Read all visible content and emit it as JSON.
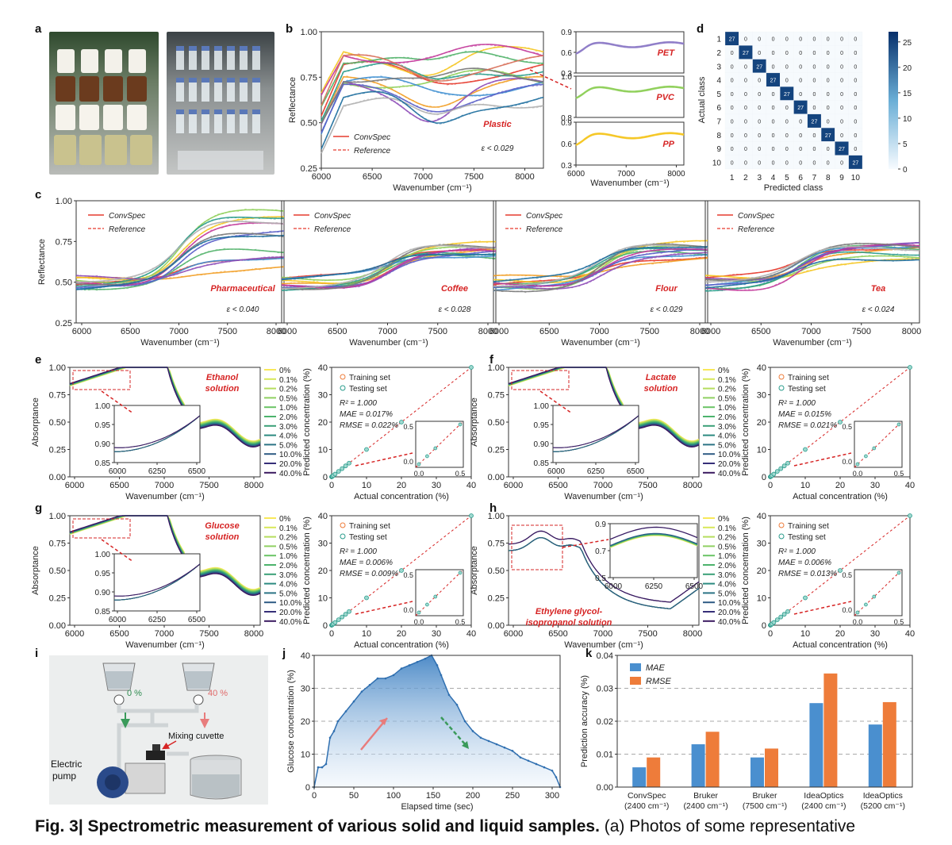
{
  "panel_labels": {
    "a": "a",
    "b": "b",
    "c": "c",
    "d": "d",
    "e": "e",
    "f": "f",
    "g": "g",
    "h": "h",
    "i": "i",
    "j": "j",
    "k": "k"
  },
  "legend": {
    "model": "ConvSpec",
    "reference": "Reference"
  },
  "axes": {
    "wavenumber": "Wavenumber (cm⁻¹)",
    "reflectance": "Reflectance",
    "absorptance": "Absorptance",
    "actual_conc": "Actual concentration (%)",
    "pred_conc": "Predicted concentration (%)",
    "actual_class": "Actual class",
    "pred_class": "Predicted class",
    "elapsed": "Elapsed time (sec)",
    "glucose_conc": "Glucose concentration (%)",
    "pred_acc": "Prediction accuracy (%)"
  },
  "panel_b": {
    "label": "Plastic",
    "eps": "ε < 0.029",
    "insets": [
      "PET",
      "PVC",
      "PP"
    ]
  },
  "panel_c": [
    {
      "label": "Pharmaceutical",
      "eps": "ε < 0.040"
    },
    {
      "label": "Coffee",
      "eps": "ε < 0.028"
    },
    {
      "label": "Flour",
      "eps": "ε < 0.029"
    },
    {
      "label": "Tea",
      "eps": "ε < 0.024"
    }
  ],
  "concentrations": [
    "0%",
    "0.1%",
    "0.2%",
    "0.5%",
    "1.0%",
    "2.0%",
    "3.0%",
    "4.0%",
    "5.0%",
    "10.0%",
    "20.0%",
    "40.0%"
  ],
  "solutions": [
    {
      "label1": "Ethanol",
      "label2": "solution",
      "r2": "R² = 1.000",
      "mae": "MAE = 0.017%",
      "rmse": "RMSE = 0.022%"
    },
    {
      "label1": "Lactate",
      "label2": "solution",
      "r2": "R² = 1.000",
      "mae": "MAE = 0.015%",
      "rmse": "RMSE = 0.021%"
    },
    {
      "label1": "Glucose",
      "label2": "solution",
      "r2": "R² = 1.000",
      "mae": "MAE = 0.006%",
      "rmse": "RMSE = 0.009%"
    },
    {
      "label1": "Ethylene glycol-",
      "label2": "isopropanol solution",
      "r2": "R² = 1.000",
      "mae": "MAE = 0.006%",
      "rmse": "RMSE = 0.013%"
    }
  ],
  "scatter_legend": {
    "train": "Training set",
    "test": "Testing set"
  },
  "panel_i": {
    "pct0": "0 %",
    "pct40": "40 %",
    "cuvette": "Mixing cuvette",
    "pump1": "Electric",
    "pump2": "pump"
  },
  "chart_data": [
    {
      "type": "heatmap",
      "panel": "d",
      "rows": [
        1,
        2,
        3,
        4,
        5,
        6,
        7,
        8,
        9,
        10
      ],
      "cols": [
        1,
        2,
        3,
        4,
        5,
        6,
        7,
        8,
        9,
        10
      ],
      "diagonal_value": 27,
      "off_diagonal_value": 0,
      "colorbar_ticks": [
        0,
        5,
        10,
        15,
        20,
        25
      ],
      "xlabel": "Predicted class",
      "ylabel": "Actual class"
    },
    {
      "type": "area",
      "panel": "j",
      "xlabel": "Elapsed time (sec)",
      "ylabel": "Glucose concentration (%)",
      "xlim": [
        0,
        310
      ],
      "ylim": [
        0,
        40
      ],
      "x": [
        0,
        5,
        10,
        15,
        20,
        25,
        30,
        40,
        50,
        60,
        70,
        80,
        90,
        100,
        110,
        120,
        130,
        140,
        148,
        155,
        160,
        170,
        180,
        190,
        200,
        210,
        220,
        230,
        240,
        250,
        260,
        270,
        280,
        290,
        300,
        305,
        310
      ],
      "y": [
        0,
        6,
        6,
        7,
        15,
        17,
        20,
        23,
        26,
        29,
        31,
        33,
        33,
        34,
        36,
        37,
        38,
        39,
        40,
        37,
        34,
        28,
        25,
        20,
        17,
        15,
        14,
        13,
        12,
        11,
        9,
        8,
        7,
        6,
        5,
        3,
        0
      ]
    },
    {
      "type": "bar",
      "panel": "k",
      "ylabel": "Prediction accuracy (%)",
      "ylim": [
        0,
        0.04
      ],
      "categories": [
        "ConvSpec (2400 cm⁻¹)",
        "Bruker (2400 cm⁻¹)",
        "Bruker (7500 cm⁻¹)",
        "IdeaOptics (2400 cm⁻¹)",
        "IdeaOptics (5200 cm⁻¹)"
      ],
      "series": [
        {
          "name": "MAE",
          "color": "#4a8fcf",
          "values": [
            0.006,
            0.013,
            0.009,
            0.0255,
            0.019
          ]
        },
        {
          "name": "RMSE",
          "color": "#ee7c3a",
          "values": [
            0.009,
            0.0168,
            0.0117,
            0.0345,
            0.0258
          ]
        }
      ]
    }
  ],
  "caption": {
    "title": "Fig. 3| Spectrometric measurement of various solid and liquid samples.",
    "text": " (a) Photos of some representative"
  }
}
